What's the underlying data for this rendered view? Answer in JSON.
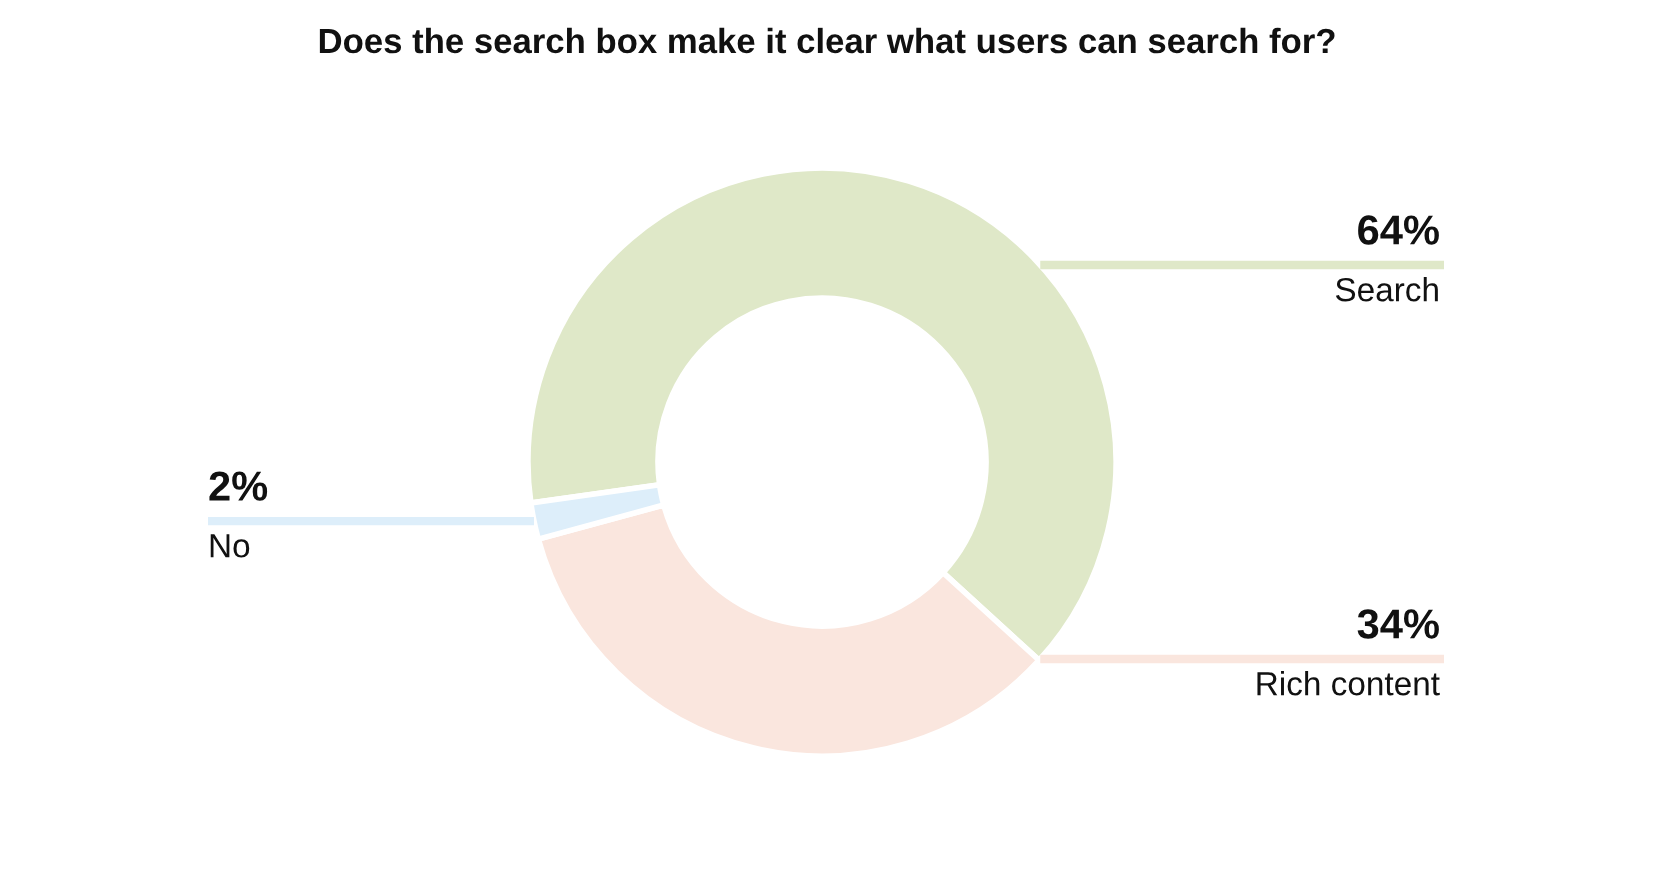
{
  "chart_data": {
    "type": "donut",
    "title": "Does the search box make it clear what users can search for?",
    "categories": [
      "Search",
      "Rich content",
      "No"
    ],
    "values": [
      64,
      34,
      2
    ],
    "colors": [
      "#dfe8c8",
      "#fae6de",
      "#ddeefa"
    ],
    "value_labels": [
      "64%",
      "34%",
      "2%"
    ]
  }
}
